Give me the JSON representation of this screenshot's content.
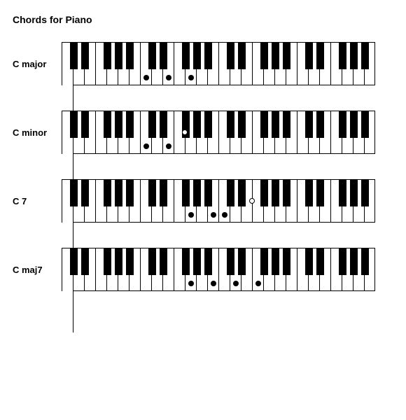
{
  "title": "Chords for Piano",
  "keyboard": {
    "white_keys": 28,
    "white_key_width": 16,
    "height": 62,
    "black_key_width": 11,
    "black_key_height": 38,
    "border_color": "#000000",
    "white_color": "#ffffff",
    "black_color": "#000000",
    "dot_diameter": 8,
    "dot_y_white": 50,
    "dot_y_black": 30
  },
  "chords": [
    {
      "label": "C major",
      "notes": [
        {
          "white_index": 7,
          "on_black": false,
          "color": "black"
        },
        {
          "white_index": 9,
          "on_black": false,
          "color": "black"
        },
        {
          "white_index": 11,
          "on_black": false,
          "color": "black"
        }
      ]
    },
    {
      "label": "C minor",
      "notes": [
        {
          "white_index": 7,
          "on_black": false,
          "color": "black"
        },
        {
          "white_index": 9,
          "on_black": false,
          "color": "black"
        },
        {
          "white_index": 11,
          "on_black": true,
          "black_offset": -1,
          "color": "white"
        }
      ]
    },
    {
      "label": "C 7",
      "notes": [
        {
          "white_index": 11,
          "on_black": false,
          "color": "black"
        },
        {
          "white_index": 13,
          "on_black": false,
          "color": "black"
        },
        {
          "white_index": 14,
          "on_black": false,
          "color": "black"
        },
        {
          "white_index": 17,
          "on_black": true,
          "black_offset": -1,
          "color": "white"
        }
      ]
    },
    {
      "label": "C maj7",
      "notes": [
        {
          "white_index": 11,
          "on_black": false,
          "color": "black"
        },
        {
          "white_index": 13,
          "on_black": false,
          "color": "black"
        },
        {
          "white_index": 15,
          "on_black": false,
          "color": "black"
        },
        {
          "white_index": 17,
          "on_black": false,
          "color": "black"
        }
      ]
    }
  ]
}
